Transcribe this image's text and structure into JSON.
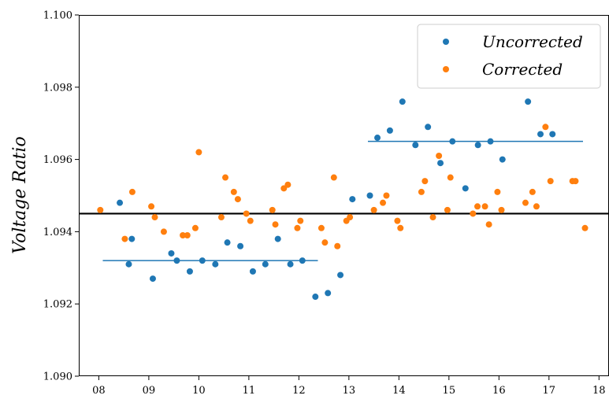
{
  "chart_data": {
    "type": "scatter",
    "ylabel": "Voltage Ratio",
    "xlabel": "",
    "title": "",
    "xlim": [
      7.6,
      18.2
    ],
    "ylim": [
      1.09,
      1.1
    ],
    "x_ticks": [
      8,
      9,
      10,
      11,
      12,
      13,
      14,
      15,
      16,
      17,
      18
    ],
    "x_tick_labels": [
      "08",
      "09",
      "10",
      "11",
      "12",
      "13",
      "14",
      "15",
      "16",
      "17",
      "18"
    ],
    "y_ticks": [
      1.09,
      1.092,
      1.094,
      1.096,
      1.098,
      1.1
    ],
    "y_tick_labels": [
      "1.090",
      "1.092",
      "1.094",
      "1.096",
      "1.098",
      "1.100"
    ],
    "legend_position": "top-right",
    "grid": false,
    "series": [
      {
        "name": "Uncorrected",
        "color": "#1f77b4",
        "points": [
          [
            8.42,
            1.0948
          ],
          [
            8.6,
            1.0931
          ],
          [
            8.66,
            1.0938
          ],
          [
            9.08,
            1.0927
          ],
          [
            9.45,
            1.0934
          ],
          [
            9.56,
            1.0932
          ],
          [
            9.82,
            1.0929
          ],
          [
            10.07,
            1.0932
          ],
          [
            10.33,
            1.0931
          ],
          [
            10.57,
            1.0937
          ],
          [
            10.83,
            1.0936
          ],
          [
            11.08,
            1.0929
          ],
          [
            11.33,
            1.0931
          ],
          [
            11.58,
            1.0938
          ],
          [
            11.83,
            1.0931
          ],
          [
            12.07,
            1.0932
          ],
          [
            12.33,
            1.0922
          ],
          [
            12.58,
            1.0923
          ],
          [
            12.83,
            1.0928
          ],
          [
            13.07,
            1.0949
          ],
          [
            13.42,
            1.095
          ],
          [
            13.57,
            1.0966
          ],
          [
            13.82,
            1.0968
          ],
          [
            14.07,
            1.0976
          ],
          [
            14.33,
            1.0964
          ],
          [
            14.58,
            1.0969
          ],
          [
            14.83,
            1.0959
          ],
          [
            15.07,
            1.0965
          ],
          [
            15.33,
            1.0952
          ],
          [
            15.58,
            1.0964
          ],
          [
            15.83,
            1.0965
          ],
          [
            16.07,
            1.096
          ],
          [
            16.58,
            1.0976
          ],
          [
            16.83,
            1.0967
          ],
          [
            17.07,
            1.0967
          ]
        ]
      },
      {
        "name": "Corrected",
        "color": "#ff7f0e",
        "points": [
          [
            8.03,
            1.0946
          ],
          [
            8.52,
            1.0938
          ],
          [
            8.67,
            1.0951
          ],
          [
            9.05,
            1.0947
          ],
          [
            9.12,
            1.0944
          ],
          [
            9.3,
            1.094
          ],
          [
            9.68,
            1.0939
          ],
          [
            9.77,
            1.0939
          ],
          [
            9.93,
            1.0941
          ],
          [
            10.0,
            1.0962
          ],
          [
            10.45,
            1.0944
          ],
          [
            10.53,
            1.0955
          ],
          [
            10.7,
            1.0951
          ],
          [
            10.78,
            1.0949
          ],
          [
            10.95,
            1.0945
          ],
          [
            11.03,
            1.0943
          ],
          [
            11.47,
            1.0946
          ],
          [
            11.53,
            1.0942
          ],
          [
            11.7,
            1.0952
          ],
          [
            11.78,
            1.0953
          ],
          [
            11.97,
            1.0941
          ],
          [
            12.03,
            1.0943
          ],
          [
            12.45,
            1.0941
          ],
          [
            12.52,
            1.0937
          ],
          [
            12.7,
            1.0955
          ],
          [
            12.77,
            1.0936
          ],
          [
            12.95,
            1.0943
          ],
          [
            13.02,
            1.0944
          ],
          [
            13.5,
            1.0946
          ],
          [
            13.68,
            1.0948
          ],
          [
            13.75,
            1.095
          ],
          [
            13.97,
            1.0943
          ],
          [
            14.03,
            1.0941
          ],
          [
            14.45,
            1.0951
          ],
          [
            14.52,
            1.0954
          ],
          [
            14.68,
            1.0944
          ],
          [
            14.8,
            1.0961
          ],
          [
            14.97,
            1.0946
          ],
          [
            15.03,
            1.0955
          ],
          [
            15.48,
            1.0945
          ],
          [
            15.57,
            1.0947
          ],
          [
            15.72,
            1.0947
          ],
          [
            15.8,
            1.0942
          ],
          [
            15.97,
            1.0951
          ],
          [
            16.05,
            1.0946
          ],
          [
            16.53,
            1.0948
          ],
          [
            16.67,
            1.0951
          ],
          [
            16.75,
            1.0947
          ],
          [
            16.93,
            1.0969
          ],
          [
            17.03,
            1.0954
          ],
          [
            17.47,
            1.0954
          ],
          [
            17.53,
            1.0954
          ],
          [
            17.72,
            1.0941
          ]
        ]
      }
    ],
    "reference_lines": [
      {
        "kind": "horizontal",
        "y": 1.0945,
        "x_range": [
          7.6,
          18.2
        ],
        "color": "#000000"
      },
      {
        "kind": "segment",
        "y": 1.0932,
        "x_range": [
          8.08,
          12.38
        ],
        "color": "#1f77b4"
      },
      {
        "kind": "segment",
        "y": 1.0965,
        "x_range": [
          13.38,
          17.68
        ],
        "color": "#1f77b4"
      }
    ]
  }
}
